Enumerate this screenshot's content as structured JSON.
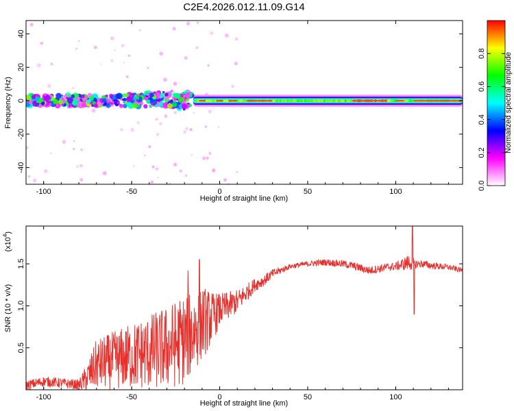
{
  "title": "C2E4.2026.012.11.09.G14",
  "chart_data": [
    {
      "type": "heatmap",
      "name": "spectrogram",
      "xlabel": "Height of straight line (km)",
      "ylabel": "Frequency (Hz)",
      "xlim": [
        -110,
        138
      ],
      "ylim": [
        -50,
        48
      ],
      "xticks": [
        -100,
        -50,
        0,
        50,
        100
      ],
      "xtick_labels": [
        "-100",
        "-50",
        "0",
        "50",
        "100"
      ],
      "yticks": [
        -40,
        -20,
        0,
        20,
        40
      ],
      "ytick_labels": [
        "-40",
        "-20",
        "0",
        "20",
        "40"
      ],
      "colorbar": {
        "label": "Normalized spectral amplitude",
        "range": [
          0,
          1
        ],
        "ticks": [
          0.0,
          0.2,
          0.4,
          0.6,
          0.8
        ],
        "tick_labels": [
          "0.0",
          "0.2",
          "0.4",
          "0.6",
          "0.8"
        ],
        "colormap": [
          "#ffffff",
          "#ff00ff",
          "#0000ff",
          "#00ffff",
          "#00ff00",
          "#ffff00",
          "#ff0000"
        ]
      },
      "band_center_hz": 0,
      "band_halfwidth_hz": 3,
      "features": [
        {
          "x_range": [
            -110,
            -15
          ],
          "description_value": "scattered blobs",
          "amplitude": 0.35
        },
        {
          "x_range": [
            -15,
            75
          ],
          "amplitude": 0.55
        },
        {
          "x_range": [
            75,
            95
          ],
          "amplitude": 0.7
        },
        {
          "x_range": [
            95,
            138
          ],
          "amplitude": 0.55
        }
      ]
    },
    {
      "type": "line",
      "name": "snr",
      "xlabel": "Height of straight line (km)",
      "ylabel": "SNR (10 * v/v)",
      "scale_label": "(x10",
      "scale_exp": "4",
      "scale_close": ")",
      "xlim": [
        -110,
        138
      ],
      "ylim": [
        0,
        1.95
      ],
      "xticks": [
        -100,
        -50,
        0,
        50,
        100
      ],
      "xtick_labels": [
        "-100",
        "-50",
        "0",
        "50",
        "100"
      ],
      "yticks": [
        0.5,
        1.0,
        1.5
      ],
      "ytick_labels": [
        "0.5",
        "1.0",
        "1.5"
      ],
      "color": "#e8302c",
      "envelope": {
        "x": [
          -110,
          -100,
          -90,
          -80,
          -75,
          -70,
          -60,
          -50,
          -40,
          -30,
          -20,
          -15,
          -10,
          -5,
          0,
          5,
          10,
          15,
          20,
          25,
          30,
          40,
          50,
          60,
          70,
          75,
          80,
          85,
          90,
          95,
          100,
          105,
          108,
          110,
          112,
          115,
          120,
          130,
          138
        ],
        "y": [
          0.05,
          0.1,
          0.08,
          0.06,
          0.15,
          0.3,
          0.35,
          0.4,
          0.45,
          0.5,
          0.6,
          0.7,
          0.8,
          0.85,
          0.95,
          1.0,
          1.05,
          1.15,
          1.25,
          1.3,
          1.38,
          1.47,
          1.5,
          1.52,
          1.5,
          1.48,
          1.45,
          1.42,
          1.44,
          1.46,
          1.47,
          1.5,
          1.52,
          1.5,
          1.5,
          1.5,
          1.48,
          1.46,
          1.42
        ]
      },
      "noise": {
        "x": [
          -110,
          -80,
          -70,
          -40,
          -20,
          -10,
          0,
          20,
          40,
          80,
          100,
          108,
          112,
          138
        ],
        "amp": [
          0.06,
          0.06,
          0.3,
          0.45,
          0.55,
          0.45,
          0.2,
          0.08,
          0.03,
          0.05,
          0.05,
          0.1,
          0.05,
          0.03
        ]
      },
      "spikes": [
        {
          "x": 109.5,
          "y": 1.95
        },
        {
          "x": 110.5,
          "y": 0.9
        },
        {
          "x": -11.5,
          "y": 1.55
        },
        {
          "x": -18,
          "y": 1.42
        }
      ]
    }
  ]
}
